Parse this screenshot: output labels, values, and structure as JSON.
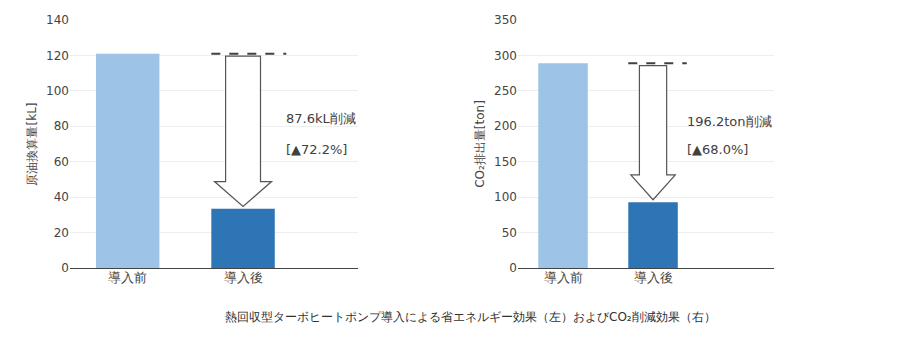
{
  "chart_data": [
    {
      "type": "bar",
      "categories": [
        "導入前",
        "導入後"
      ],
      "values": [
        121,
        33.4
      ],
      "colors": [
        "#9dc3e6",
        "#2e75b6"
      ],
      "ylabel": "原油換算量[kL]",
      "ylim": [
        0,
        140
      ],
      "yticks": [
        0,
        20,
        40,
        60,
        80,
        100,
        120,
        140
      ],
      "grid": true,
      "annotations": [
        "87.6kL削減",
        "[▲72.2%]"
      ]
    },
    {
      "type": "bar",
      "categories": [
        "導入前",
        "導入後"
      ],
      "values": [
        289,
        92.8
      ],
      "colors": [
        "#9dc3e6",
        "#2e75b6"
      ],
      "ylabel": "CO₂排出量[ton]",
      "ylim": [
        0,
        350
      ],
      "yticks": [
        0,
        50,
        100,
        150,
        200,
        250,
        300,
        350
      ],
      "grid": true,
      "annotations": [
        "196.2ton削減",
        "[▲68.0%]"
      ]
    }
  ],
  "caption": "熱回収型ターボヒートポンプ導入による省エネルギー効果（左）およびCO₂削減効果（右）"
}
